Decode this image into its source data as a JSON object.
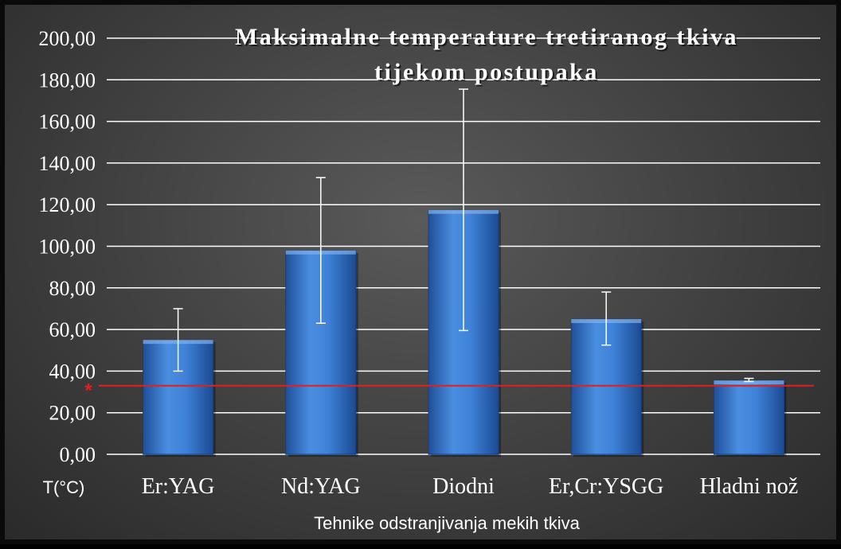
{
  "chart_data": {
    "type": "bar",
    "title_line1": "Maksimalne temperature tretiranog tkiva",
    "title_line2": "tijekom postupaka",
    "xlabel": "Tehnike odstranjivanja mekih tkiva",
    "ylabel": "T(°C)",
    "categories": [
      "Er:YAG",
      "Nd:YAG",
      "Diodni",
      "Er,Cr:YSGG",
      "Hladni nož"
    ],
    "values": [
      55,
      98,
      117.5,
      65,
      35.5
    ],
    "error_low": [
      40,
      63,
      59.5,
      52.5,
      35
    ],
    "error_high": [
      70,
      133,
      175.5,
      78,
      36.5
    ],
    "ylim": [
      0,
      200
    ],
    "yticks": [
      0,
      20,
      40,
      60,
      80,
      100,
      120,
      140,
      160,
      180,
      200
    ],
    "ytick_labels": [
      "0,00",
      "20,00",
      "40,00",
      "60,00",
      "80,00",
      "100,00",
      "120,00",
      "140,00",
      "160,00",
      "180,00",
      "200,00"
    ],
    "reference_line": {
      "value": 33,
      "marker": "*",
      "color": "#e02020"
    },
    "grid": true,
    "bar_color": "#3a7bd5"
  }
}
